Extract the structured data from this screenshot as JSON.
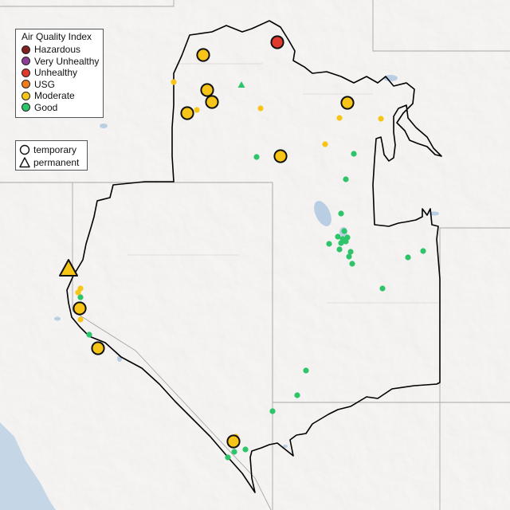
{
  "legend": {
    "title": "Air Quality Index",
    "categories": [
      {
        "label": "Hazardous",
        "color": "#7e2121"
      },
      {
        "label": "Very Unhealthy",
        "color": "#8f3f97"
      },
      {
        "label": "Unhealthy",
        "color": "#e03a2e"
      },
      {
        "label": "USG",
        "color": "#f07d1c"
      },
      {
        "label": "Moderate",
        "color": "#f7c518"
      },
      {
        "label": "Good",
        "color": "#2ec46a"
      }
    ],
    "shapes": [
      {
        "label": "temporary",
        "shape": "circle"
      },
      {
        "label": "permanent",
        "shape": "triangle"
      }
    ]
  },
  "monitors": [
    {
      "cat": "Unhealthy",
      "type": "temporary",
      "major": true
    },
    {
      "cat": "Moderate",
      "type": "temporary",
      "major": true
    },
    {
      "cat": "Moderate",
      "type": "temporary",
      "major": true
    },
    {
      "cat": "Moderate",
      "type": "temporary",
      "major": true
    },
    {
      "cat": "Moderate",
      "type": "temporary",
      "major": true
    },
    {
      "cat": "Moderate",
      "type": "temporary",
      "major": true
    },
    {
      "cat": "Moderate",
      "type": "temporary",
      "major": true
    },
    {
      "cat": "Moderate",
      "type": "permanent",
      "major": true
    },
    {
      "cat": "Moderate",
      "type": "temporary",
      "major": true
    },
    {
      "cat": "Moderate",
      "type": "temporary",
      "major": true
    },
    {
      "cat": "Moderate",
      "type": "temporary",
      "major": true
    }
  ]
}
